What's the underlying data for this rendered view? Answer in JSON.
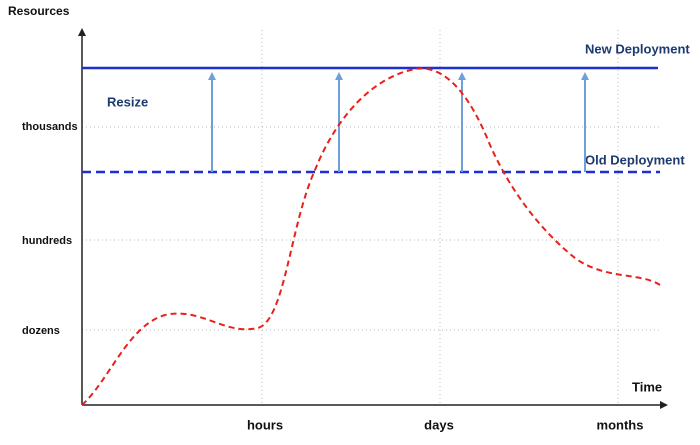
{
  "axes": {
    "y_title": "Resources",
    "x_title": "Time",
    "y_labels": [
      "thousands",
      "hundreds",
      "dozens"
    ],
    "x_labels": [
      "hours",
      "days",
      "months"
    ]
  },
  "lines": {
    "new": "New Deployment",
    "old": "Old Deployment"
  },
  "annotation": "Resize"
}
